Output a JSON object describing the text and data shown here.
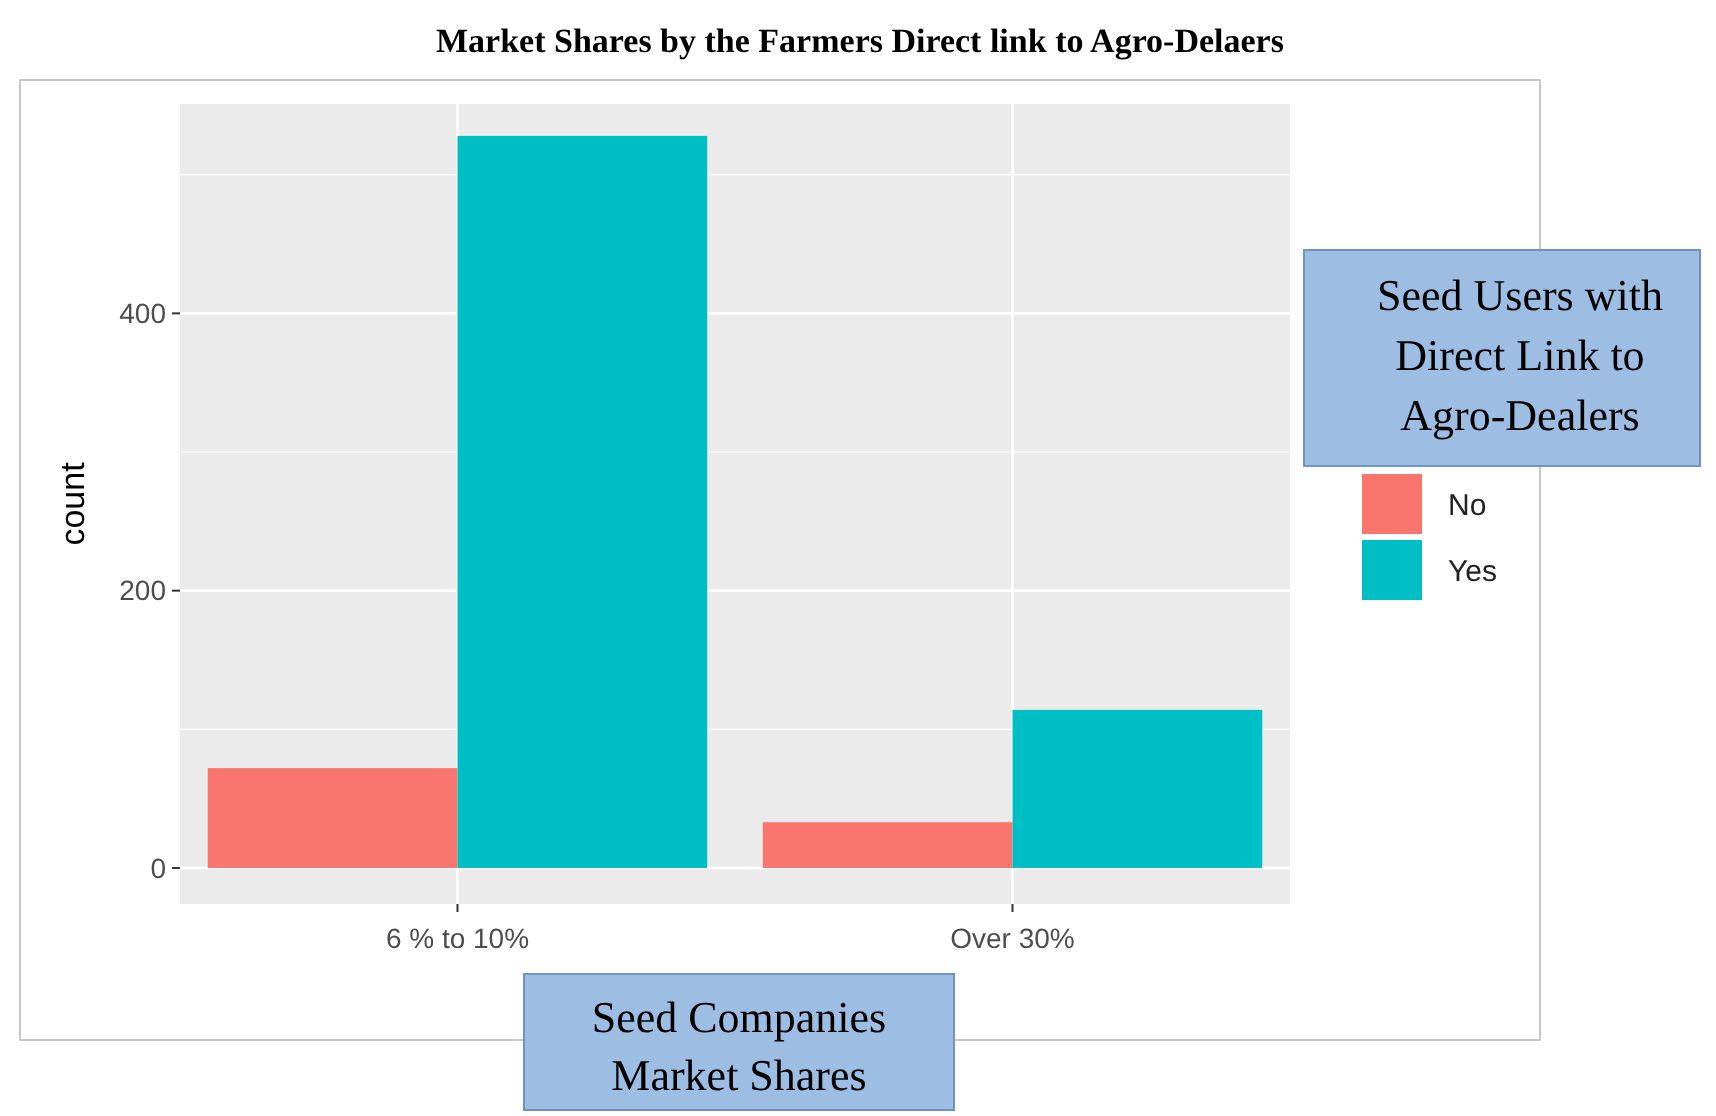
{
  "chart_data": {
    "type": "bar",
    "title": "Market Shares by the Farmers Direct link to Agro-Delaers",
    "xlabel": "Seed Companies Market Shares",
    "ylabel": "count",
    "legend_title": "Seed Users with Direct Link to Agro-Dealers",
    "categories": [
      "6 % to 10%",
      "Over 30%"
    ],
    "series": [
      {
        "name": "No",
        "color": "#f8766d",
        "values": [
          72,
          33
        ]
      },
      {
        "name": "Yes",
        "color": "#00bfc4",
        "values": [
          528,
          114
        ]
      }
    ],
    "ylim": [
      -26,
      551
    ],
    "yticks": [
      0,
      200,
      400
    ],
    "grid": true,
    "legend": "right"
  }
}
